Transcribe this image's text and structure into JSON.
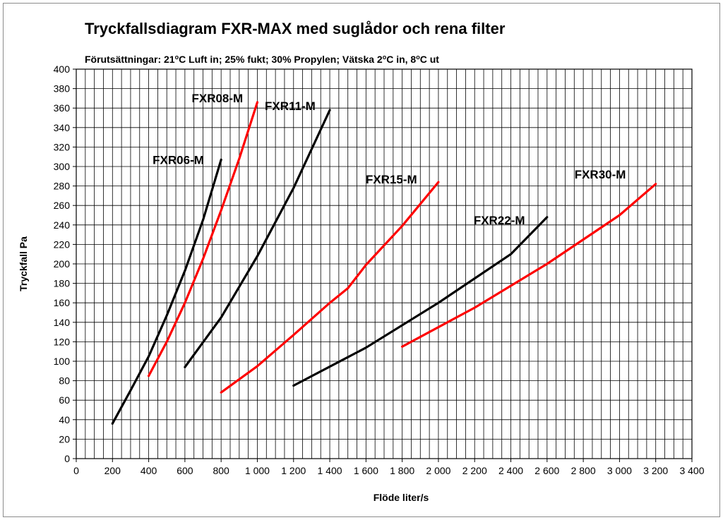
{
  "chart_data": {
    "type": "line",
    "title": "Tryckfallsdiagram FXR-MAX med suglådor och rena filter",
    "subtitle": {
      "parts": [
        "Förutsättningar: 21",
        "o",
        "C Luft in; 25% fukt; 30% Propylen; Vätska 2",
        "o",
        "C in, 8",
        "o",
        "C ut"
      ]
    },
    "xlabel": "Flöde liter/s",
    "ylabel": "Tryckfall Pa",
    "xlim": [
      0,
      3400
    ],
    "ylim": [
      0,
      400
    ],
    "grid": true,
    "x_ticks": [
      0,
      200,
      400,
      600,
      800,
      1000,
      1200,
      1400,
      1600,
      1800,
      2000,
      2200,
      2400,
      2600,
      2800,
      3000,
      3200,
      3400
    ],
    "x_tick_labels": [
      "0",
      "200",
      "400",
      "600",
      "800",
      "1 000",
      "1 200",
      "1 400",
      "1 600",
      "1 800",
      "2 000",
      "2 200",
      "2 400",
      "2 600",
      "2 800",
      "3 000",
      "3 200",
      "3 400"
    ],
    "y_ticks": [
      0,
      20,
      40,
      60,
      80,
      100,
      120,
      140,
      160,
      180,
      200,
      220,
      240,
      260,
      280,
      300,
      320,
      340,
      360,
      380,
      400
    ],
    "y_tick_labels": [
      "0",
      "20",
      "40",
      "60",
      "80",
      "100",
      "120",
      "140",
      "160",
      "180",
      "200",
      "220",
      "240",
      "260",
      "280",
      "300",
      "320",
      "340",
      "360",
      "380",
      "400"
    ],
    "series": [
      {
        "name": "FXR06-M",
        "color": "#000000",
        "x": [
          200,
          300,
          400,
          500,
          600,
          700,
          800
        ],
        "y": [
          36,
          70,
          105,
          147,
          193,
          245,
          307
        ]
      },
      {
        "name": "FXR08-M",
        "color": "#ff0000",
        "x": [
          400,
          500,
          600,
          700,
          800,
          900,
          1000
        ],
        "y": [
          85,
          120,
          160,
          205,
          255,
          308,
          366
        ]
      },
      {
        "name": "FXR11-M",
        "color": "#000000",
        "x": [
          600,
          800,
          1000,
          1200,
          1400
        ],
        "y": [
          94,
          145,
          208,
          278,
          358
        ]
      },
      {
        "name": "FXR15-M",
        "color": "#ff0000",
        "x": [
          800,
          1000,
          1200,
          1400,
          1500,
          1600,
          1800,
          2000
        ],
        "y": [
          68,
          95,
          127,
          160,
          175,
          199,
          239,
          284
        ]
      },
      {
        "name": "FXR22-M",
        "color": "#000000",
        "x": [
          1200,
          1600,
          2000,
          2400,
          2600
        ],
        "y": [
          75,
          114,
          160,
          210,
          248
        ]
      },
      {
        "name": "FXR30-M",
        "color": "#ff0000",
        "x": [
          1800,
          2200,
          2600,
          3000,
          3200
        ],
        "y": [
          115,
          155,
          200,
          250,
          282
        ]
      }
    ]
  }
}
